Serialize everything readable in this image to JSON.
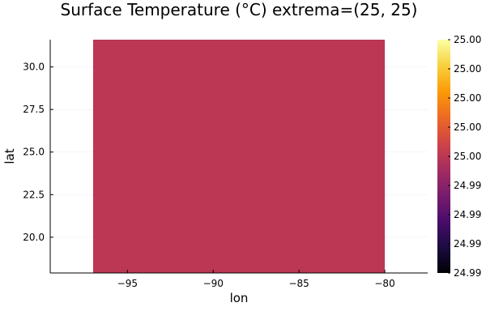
{
  "chart_data": {
    "type": "heatmap",
    "title": "Surface Temperature (°C)  extrema=(25, 25)",
    "xlabel": "lon",
    "ylabel": "lat",
    "xlim": [
      -99.5,
      -77.5
    ],
    "ylim": [
      17.9,
      31.6
    ],
    "x_ticks": [
      -95,
      -90,
      -85,
      -80
    ],
    "x_tick_labels": [
      "−95",
      "−90",
      "−85",
      "−80"
    ],
    "y_ticks": [
      20.0,
      22.5,
      25.0,
      27.5,
      30.0
    ],
    "y_tick_labels": [
      "20.0",
      "22.5",
      "25.0",
      "27.5",
      "30.0"
    ],
    "grid": true,
    "field": {
      "lon_range": [
        -97.0,
        -80.0
      ],
      "lat_range": [
        17.9,
        31.6
      ],
      "value": 25,
      "color": "#bb3754"
    },
    "colorbar": {
      "colormap": "inferno",
      "colors": [
        "#000004",
        "#1b0c41",
        "#4a0c6b",
        "#781c6d",
        "#a52c60",
        "#cf4446",
        "#ed6925",
        "#fb9b06",
        "#f7d13d",
        "#fcffa4"
      ],
      "tick_labels": [
        "24.99",
        "24.99",
        "24.99",
        "24.99",
        "25.00",
        "25.00",
        "25.00",
        "25.00",
        "25.00"
      ]
    }
  }
}
